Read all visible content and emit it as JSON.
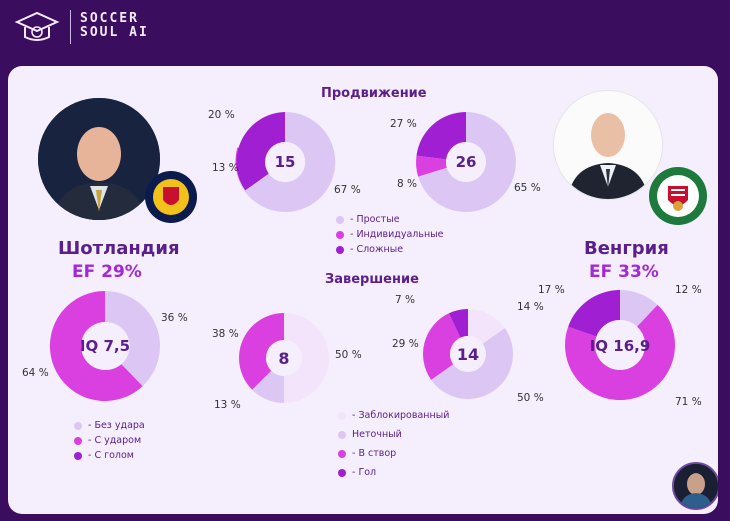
{
  "brand": {
    "line1": "SOCCER",
    "line2": "SOUL AI"
  },
  "colors": {
    "simple": "#dcc6f4",
    "individual": "#da3fe0",
    "complex": "#a01fd2",
    "blocked": "#f4e4fb",
    "inaccurate": "#dcc6f4",
    "ontarget": "#da3fe0",
    "goal": "#a01fd2"
  },
  "sections": {
    "progress": "Продвижение",
    "finish": "Завершение"
  },
  "teams": {
    "left": {
      "name": "Шотландия",
      "ef": "EF  29%"
    },
    "right": {
      "name": "Венгрия",
      "ef": "EF  33%"
    }
  },
  "charts": {
    "left_ef": {
      "center": "IQ 7,5",
      "labels": {
        "a": "36 %",
        "b": "64 %"
      }
    },
    "prog_left": {
      "center": "15",
      "labels": {
        "a": "20 %",
        "b": "13 %",
        "c": "67 %"
      }
    },
    "prog_right": {
      "center": "26",
      "labels": {
        "a": "27 %",
        "b": "8 %",
        "c": "65 %"
      }
    },
    "fin_left": {
      "center": "8",
      "labels": {
        "a": "38 %",
        "b": "50 %",
        "c": "13 %"
      }
    },
    "fin_right": {
      "center": "14",
      "labels": {
        "a": "7 %",
        "b": "14 %",
        "c": "29 %",
        "d": "50 %"
      }
    },
    "right_ef": {
      "center": "IQ 16,9",
      "labels": {
        "a": "17 %",
        "b": "12 %",
        "c": "71 %"
      }
    }
  },
  "legend_progress": [
    "- Простые",
    "- Индивидуальные",
    "- Сложные"
  ],
  "legend_ef": [
    "- Без удара",
    "- С ударом",
    "- С голом"
  ],
  "legend_finish": [
    "- Заблокированный",
    "Неточный",
    "- В створ",
    "- Гол"
  ]
}
